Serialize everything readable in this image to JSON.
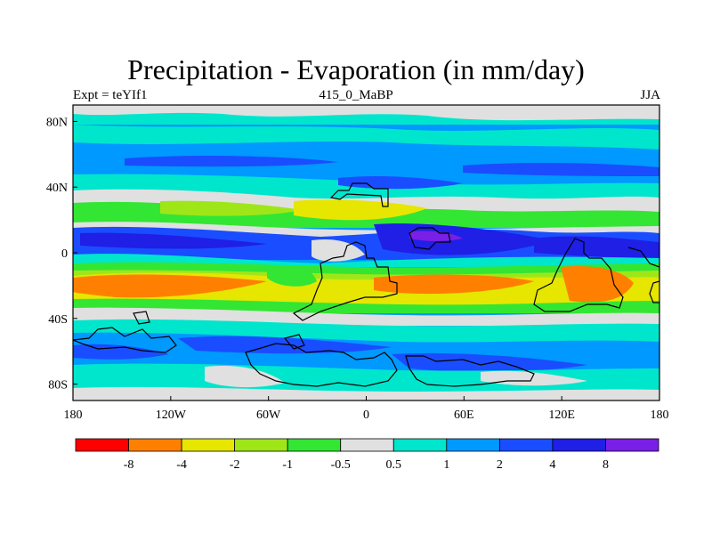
{
  "title": "Precipitation - Evaporation (in mm/day)",
  "subtitle_left": "Expt = teYIf1",
  "subtitle_center": "415_0_MaBP",
  "subtitle_right": "JJA",
  "map": {
    "lon_range": [
      -180,
      180
    ],
    "lat_range": [
      -90,
      90
    ],
    "x_ticks": [
      {
        "lon": -180,
        "label": "180"
      },
      {
        "lon": -120,
        "label": "120W"
      },
      {
        "lon": -60,
        "label": "60W"
      },
      {
        "lon": 0,
        "label": "0"
      },
      {
        "lon": 60,
        "label": "60E"
      },
      {
        "lon": 120,
        "label": "120E"
      },
      {
        "lon": 180,
        "label": "180"
      }
    ],
    "y_ticks": [
      {
        "lat": 80,
        "label": "80N"
      },
      {
        "lat": 40,
        "label": "40N"
      },
      {
        "lat": 0,
        "label": "0"
      },
      {
        "lat": -40,
        "label": "40S"
      },
      {
        "lat": -80,
        "label": "80S"
      }
    ]
  },
  "colorbar": {
    "colors": [
      "#ff0000",
      "#ff8000",
      "#e6e600",
      "#9fe619",
      "#33e633",
      "#e0e0e0",
      "#00e6cc",
      "#0099ff",
      "#1a4dff",
      "#1f1fe6",
      "#7a1fe6"
    ],
    "labels": [
      "-8",
      "-4",
      "-2",
      "-1",
      "-0.5",
      "0.5",
      "1",
      "2",
      "4",
      "8"
    ]
  }
}
